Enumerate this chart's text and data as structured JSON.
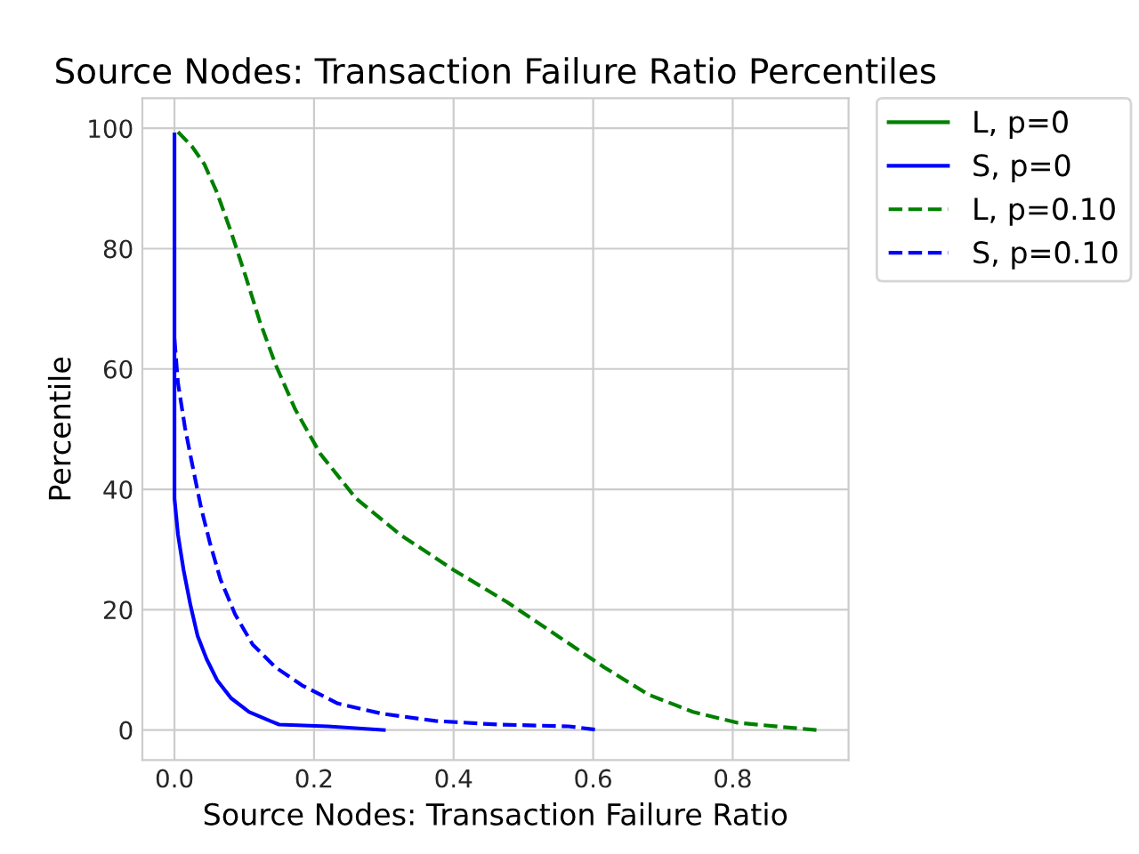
{
  "chart_data": {
    "type": "line",
    "title": "Source Nodes: Transaction Failure Ratio Percentiles",
    "xlabel": "Source Nodes: Transaction Failure Ratio",
    "ylabel": "Percentile",
    "xlim": [
      -0.046,
      0.966
    ],
    "ylim": [
      -5,
      105
    ],
    "xticks": [
      {
        "value": 0,
        "label": "0.0"
      },
      0.2,
      0.4,
      0.6,
      0.8
    ],
    "yticks": [
      0,
      20,
      40,
      60,
      80,
      100
    ],
    "grid": true,
    "legend": "right",
    "marker": "none",
    "series": [
      {
        "name": "L, p=0",
        "color": "#008000",
        "line_style": "solid"
      },
      {
        "name": "S, p=0",
        "color": "#0000ff",
        "line_style": "solid",
        "x": [
          0,
          0,
          0.005,
          0.013,
          0.023,
          0.033,
          0.046,
          0.061,
          0.081,
          0.107,
          0.137,
          0.15,
          0.22,
          0.3
        ],
        "values": [
          99,
          38.5,
          32.5,
          26.6,
          20.7,
          15.7,
          11.8,
          8.3,
          5.3,
          3,
          1.5,
          0.9,
          0.6,
          0
        ]
      },
      {
        "name": "L, p=0.10",
        "color": "#008000",
        "line_style": "dashed",
        "x": [
          0.005,
          0.025,
          0.043,
          0.061,
          0.081,
          0.102,
          0.122,
          0.145,
          0.173,
          0.209,
          0.26,
          0.323,
          0.4,
          0.476,
          0.552,
          0.616,
          0.679,
          0.743,
          0.807,
          0.88,
          0.92
        ],
        "values": [
          99.4,
          97,
          94,
          89.3,
          82.8,
          75.4,
          68,
          60.7,
          53.3,
          45.9,
          38.5,
          32.5,
          26.6,
          21.3,
          15.4,
          10.4,
          5.9,
          3,
          1.2,
          0.4,
          0
        ]
      },
      {
        "name": "S, p=0.10",
        "color": "#0000ff",
        "line_style": "dashed",
        "x": [
          0,
          0.005,
          0.015,
          0.025,
          0.038,
          0.051,
          0.066,
          0.087,
          0.112,
          0.145,
          0.183,
          0.234,
          0.298,
          0.374,
          0.463,
          0.565,
          0.608
        ],
        "values": [
          65,
          57.7,
          50.3,
          44.4,
          37,
          31,
          25,
          19.2,
          14.2,
          10.4,
          7.4,
          4.4,
          2.7,
          1.5,
          0.9,
          0.6,
          0
        ]
      }
    ]
  }
}
